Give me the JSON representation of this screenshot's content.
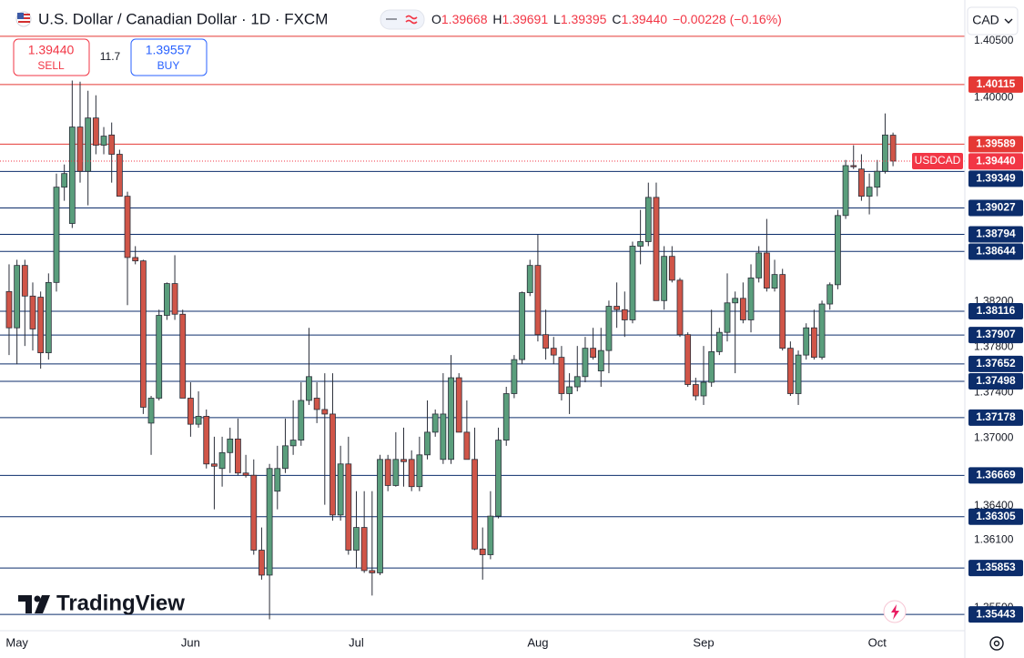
{
  "header": {
    "title": "U.S. Dollar / Canadian Dollar · 1D · FXCM",
    "ohlc": [
      {
        "key": "O",
        "value": "1.39668"
      },
      {
        "key": "H",
        "value": "1.39691"
      },
      {
        "key": "L",
        "value": "1.39395"
      },
      {
        "key": "C",
        "value": "1.39440"
      }
    ],
    "change": "−0.00228 (−0.16%)"
  },
  "trade_panel": {
    "sell": {
      "price": "1.39440",
      "label": "SELL"
    },
    "spread": "11.7",
    "buy": {
      "price": "1.39557",
      "label": "BUY"
    }
  },
  "currency": "CAD",
  "branding": "TradingView",
  "chart_data": {
    "type": "candlestick",
    "symbol": "USDCAD",
    "up_color": "#5a9e7c",
    "down_color": "#d05548",
    "grid": false,
    "open": [
      1.3829,
      1.3797,
      1.3852,
      1.3825,
      1.3824,
      1.3775,
      1.3837,
      1.3921,
      1.3889,
      1.3974,
      1.3935,
      1.3982,
      1.3958,
      1.3967,
      1.395,
      1.3913,
      1.3859,
      1.3856,
      1.3713,
      1.3735,
      1.3808,
      1.3836,
      1.3809,
      1.3735,
      1.3712,
      1.3719,
      1.3677,
      1.3673,
      1.3687,
      1.3699,
      1.3669,
      1.3667,
      1.3601,
      1.3579,
      1.3653,
      1.3673,
      1.3693,
      1.3698,
      1.3733,
      1.3735,
      1.3725,
      1.3721,
      1.3632,
      1.3677,
      1.3601,
      1.3621,
      1.3583,
      1.3581,
      1.3681,
      1.3658,
      1.3681,
      1.3681,
      1.3657,
      1.3685,
      1.3705,
      1.3681,
      1.3681,
      1.3753,
      1.3705,
      1.3681,
      1.3602,
      1.3597,
      1.3631,
      1.3698,
      1.3739,
      1.3769,
      1.3828,
      1.3852,
      1.3791,
      1.3779,
      1.3771,
      1.3739,
      1.3745,
      1.3754,
      1.3779,
      1.3759,
      1.3777,
      1.3816,
      1.3813,
      1.3804,
      1.3869,
      1.3873,
      1.3912,
      1.3821,
      1.386,
      1.3839,
      1.3791,
      1.3747,
      1.3737,
      1.3749,
      1.3776,
      1.3793,
      1.3819,
      1.3823,
      1.3804,
      1.3841,
      1.3863,
      1.3832,
      1.3844,
      1.3779,
      1.3739,
      1.3773,
      1.3797,
      1.3771,
      1.3818,
      1.3835,
      1.3896,
      1.394,
      1.3937,
      1.3913,
      1.3921,
      1.3935,
      1.39668
    ],
    "high": [
      1.3853,
      1.3857,
      1.3857,
      1.3837,
      1.3829,
      1.3845,
      1.3933,
      1.3941,
      1.4015,
      1.4014,
      1.4006,
      1.4002,
      1.3974,
      1.3978,
      1.3954,
      1.3917,
      1.3869,
      1.3857,
      1.3737,
      1.3813,
      1.3837,
      1.3861,
      1.3813,
      1.3749,
      1.3741,
      1.3725,
      1.3701,
      1.3701,
      1.3709,
      1.3717,
      1.3685,
      1.3681,
      1.3621,
      1.3677,
      1.3693,
      1.3717,
      1.3733,
      1.3749,
      1.3797,
      1.3749,
      1.3757,
      1.3757,
      1.3693,
      1.3701,
      1.3653,
      1.3653,
      1.3653,
      1.3685,
      1.3685,
      1.3705,
      1.3709,
      1.3689,
      1.3701,
      1.3733,
      1.3725,
      1.3757,
      1.3773,
      1.3757,
      1.3733,
      1.3709,
      1.3621,
      1.3653,
      1.3709,
      1.3745,
      1.3773,
      1.3829,
      1.3857,
      1.3879,
      1.3813,
      1.3789,
      1.3781,
      1.3757,
      1.3781,
      1.3789,
      1.3797,
      1.3797,
      1.3821,
      1.3837,
      1.3829,
      1.3873,
      1.3901,
      1.3925,
      1.3925,
      1.3869,
      1.3869,
      1.3841,
      1.3793,
      1.3753,
      1.3781,
      1.3813,
      1.3797,
      1.3845,
      1.3829,
      1.3837,
      1.3853,
      1.3869,
      1.3893,
      1.3857,
      1.3849,
      1.3785,
      1.3777,
      1.3801,
      1.3813,
      1.3821,
      1.3837,
      1.3901,
      1.3945,
      1.3958,
      1.395,
      1.3933,
      1.3945,
      1.3986,
      1.39691
    ],
    "low": [
      1.3773,
      1.3765,
      1.3781,
      1.3777,
      1.3761,
      1.3769,
      1.3829,
      1.3909,
      1.3885,
      1.3925,
      1.3905,
      1.395,
      1.395,
      1.3925,
      1.3913,
      1.3817,
      1.3853,
      1.3721,
      1.3685,
      1.3733,
      1.3804,
      1.3804,
      1.3735,
      1.3701,
      1.3709,
      1.3673,
      1.3637,
      1.3657,
      1.3669,
      1.3667,
      1.3665,
      1.3597,
      1.3575,
      1.354,
      1.3637,
      1.3669,
      1.3685,
      1.3693,
      1.3729,
      1.3713,
      1.3641,
      1.3627,
      1.3627,
      1.3597,
      1.3585,
      1.3581,
      1.3561,
      1.3579,
      1.3653,
      1.3657,
      1.3657,
      1.3653,
      1.3653,
      1.3681,
      1.3701,
      1.3677,
      1.3677,
      1.3705,
      1.3681,
      1.3601,
      1.3575,
      1.3593,
      1.3629,
      1.3693,
      1.3735,
      1.3765,
      1.3825,
      1.3785,
      1.3769,
      1.3765,
      1.3733,
      1.3721,
      1.3741,
      1.3749,
      1.3769,
      1.3745,
      1.3757,
      1.3797,
      1.3789,
      1.3801,
      1.3853,
      1.3869,
      1.3821,
      1.3813,
      1.3837,
      1.3789,
      1.3745,
      1.3733,
      1.3729,
      1.3745,
      1.3773,
      1.3785,
      1.3757,
      1.3801,
      1.3793,
      1.3837,
      1.3829,
      1.3829,
      1.3777,
      1.3737,
      1.3729,
      1.3769,
      1.3769,
      1.3769,
      1.3813,
      1.3831,
      1.3893,
      1.3937,
      1.3909,
      1.3897,
      1.3913,
      1.3933,
      1.39395
    ],
    "close": [
      1.3797,
      1.3852,
      1.3825,
      1.3796,
      1.3775,
      1.3837,
      1.3921,
      1.3933,
      1.3974,
      1.3935,
      1.3982,
      1.3958,
      1.3966,
      1.395,
      1.3913,
      1.3859,
      1.3856,
      1.3727,
      1.3735,
      1.3808,
      1.3836,
      1.3809,
      1.3735,
      1.3712,
      1.3719,
      1.3677,
      1.3675,
      1.3687,
      1.3699,
      1.3669,
      1.3667,
      1.3601,
      1.3579,
      1.3673,
      1.3673,
      1.3693,
      1.3698,
      1.3733,
      1.3754,
      1.3725,
      1.3721,
      1.3632,
      1.3677,
      1.3601,
      1.3621,
      1.3583,
      1.3581,
      1.3681,
      1.3658,
      1.3681,
      1.3679,
      1.3657,
      1.3685,
      1.3705,
      1.3721,
      1.3721,
      1.3753,
      1.3705,
      1.3681,
      1.3602,
      1.3597,
      1.3631,
      1.3698,
      1.3739,
      1.3769,
      1.3828,
      1.3852,
      1.3791,
      1.3779,
      1.3773,
      1.3739,
      1.3745,
      1.3754,
      1.3779,
      1.3771,
      1.3777,
      1.3816,
      1.3813,
      1.3804,
      1.3869,
      1.3873,
      1.3912,
      1.3821,
      1.386,
      1.3839,
      1.3791,
      1.3747,
      1.3737,
      1.3749,
      1.3776,
      1.3793,
      1.3819,
      1.3823,
      1.3804,
      1.3841,
      1.3863,
      1.3832,
      1.3844,
      1.3779,
      1.3739,
      1.3773,
      1.3797,
      1.3771,
      1.3818,
      1.3835,
      1.3896,
      1.394,
      1.3939,
      1.3913,
      1.3921,
      1.3935,
      1.3967,
      1.3944
    ],
    "xlim": [
      -1.15,
      121.1
    ],
    "xticks": [
      {
        "value": 1,
        "label": "May"
      },
      {
        "value": 23,
        "label": "Jun"
      },
      {
        "value": 44,
        "label": "Jul"
      },
      {
        "value": 67,
        "label": "Aug"
      },
      {
        "value": 88,
        "label": "Sep"
      },
      {
        "value": 110,
        "label": "Oct"
      }
    ],
    "ylim": [
      1.353,
      1.4086
    ],
    "yticks": [
      {
        "value": 1.405,
        "label": "1.40500"
      },
      {
        "value": 1.4,
        "label": "1.40000"
      },
      {
        "value": 1.382,
        "label": "1.38200"
      },
      {
        "value": 1.378,
        "label": "1.37800"
      },
      {
        "value": 1.374,
        "label": "1.37400"
      },
      {
        "value": 1.37,
        "label": "1.37000"
      },
      {
        "value": 1.364,
        "label": "1.36400"
      },
      {
        "value": 1.361,
        "label": "1.36100"
      },
      {
        "value": 1.355,
        "label": "1.35500"
      }
    ],
    "current_price": {
      "value": 1.3944,
      "label": "1.39440",
      "color": "#f23645"
    },
    "unlabeled_levels": [
      {
        "value": 1.4054,
        "color": "#e53935"
      }
    ],
    "levels": [
      {
        "value": 1.40115,
        "color": "#e53935"
      },
      {
        "value": 1.39589,
        "color": "#e53935"
      },
      {
        "value": 1.39349,
        "color": "#0c2d6b"
      },
      {
        "value": 1.39027,
        "color": "#0c2d6b"
      },
      {
        "value": 1.38794,
        "color": "#0c2d6b"
      },
      {
        "value": 1.38644,
        "color": "#0c2d6b"
      },
      {
        "value": 1.38116,
        "color": "#0c2d6b"
      },
      {
        "value": 1.37907,
        "color": "#0c2d6b"
      },
      {
        "value": 1.37652,
        "color": "#0c2d6b"
      },
      {
        "value": 1.37498,
        "color": "#0c2d6b"
      },
      {
        "value": 1.37178,
        "color": "#0c2d6b"
      },
      {
        "value": 1.36669,
        "color": "#0c2d6b"
      },
      {
        "value": 1.36305,
        "color": "#0c2d6b"
      },
      {
        "value": 1.35853,
        "color": "#0c2d6b"
      },
      {
        "value": 1.35443,
        "color": "#0c2d6b"
      }
    ]
  }
}
